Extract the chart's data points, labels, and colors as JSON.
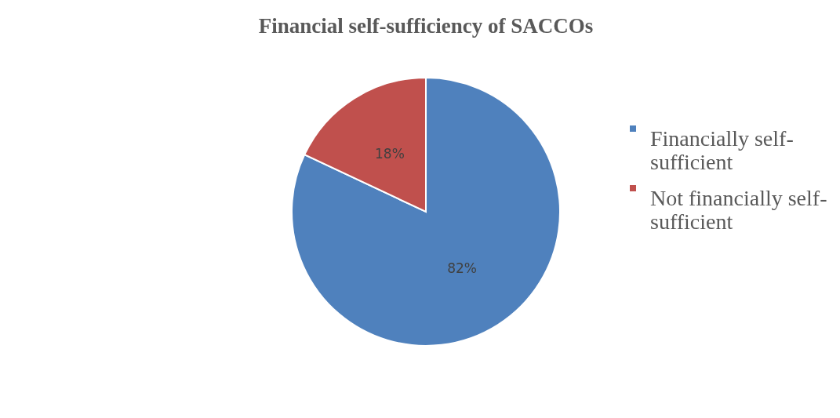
{
  "chart_data": {
    "type": "pie",
    "title": "Financial self-sufficiency of SACCOs",
    "categories": [
      "Financially self-sufficient",
      "Not financially self-sufficient"
    ],
    "values": [
      82,
      18
    ],
    "colors": [
      "#4f81bd",
      "#c0504d"
    ],
    "value_labels": [
      "82%",
      "18%"
    ],
    "legend": "right"
  }
}
